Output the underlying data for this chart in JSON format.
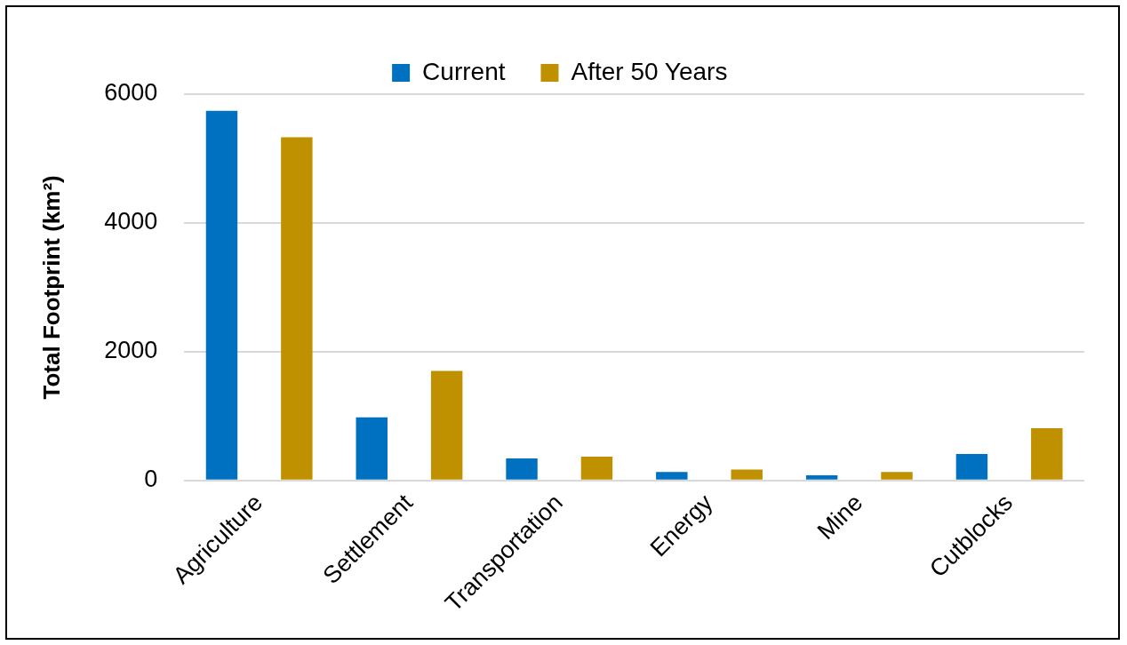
{
  "chart_data": {
    "type": "bar",
    "ylabel": "Total Footprint (km²)",
    "categories": [
      "Agriculture",
      "Settlement",
      "Transportation",
      "Energy",
      "Mine",
      "Cutblocks"
    ],
    "series": [
      {
        "name": "Current",
        "color": "#0070c0",
        "values": [
          5740,
          980,
          340,
          130,
          80,
          410
        ]
      },
      {
        "name": "After 50 Years",
        "color": "#bf9000",
        "values": [
          5330,
          1700,
          370,
          170,
          130,
          810
        ]
      }
    ],
    "ylim": [
      0,
      6000
    ],
    "yticks": [
      0,
      2000,
      4000,
      6000
    ],
    "grid": "y",
    "legend": "top"
  }
}
